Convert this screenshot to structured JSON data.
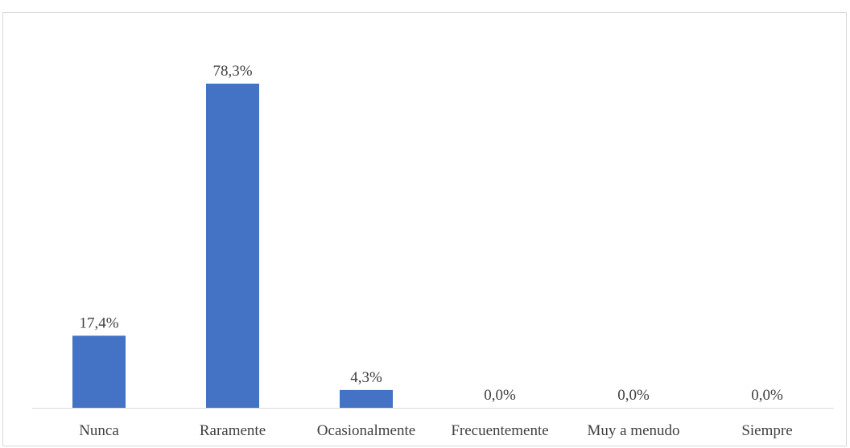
{
  "chart_data": {
    "type": "bar",
    "categories": [
      "Nunca",
      "Raramente",
      "Ocasionalmente",
      "Frecuentemente",
      "Muy a menudo",
      "Siempre"
    ],
    "values": [
      17.4,
      78.3,
      4.3,
      0.0,
      0.0,
      0.0
    ],
    "data_labels": [
      "17,4%",
      "78,3%",
      "4,3%",
      "0,0%",
      "0,0%",
      "0,0%"
    ],
    "title": "",
    "xlabel": "",
    "ylabel": "",
    "ylim": [
      0,
      78.3
    ],
    "grid": false,
    "legend": "none",
    "bar_color": "#4472c4",
    "axis_color": "#d9d9d9",
    "label_color": "#404040"
  }
}
